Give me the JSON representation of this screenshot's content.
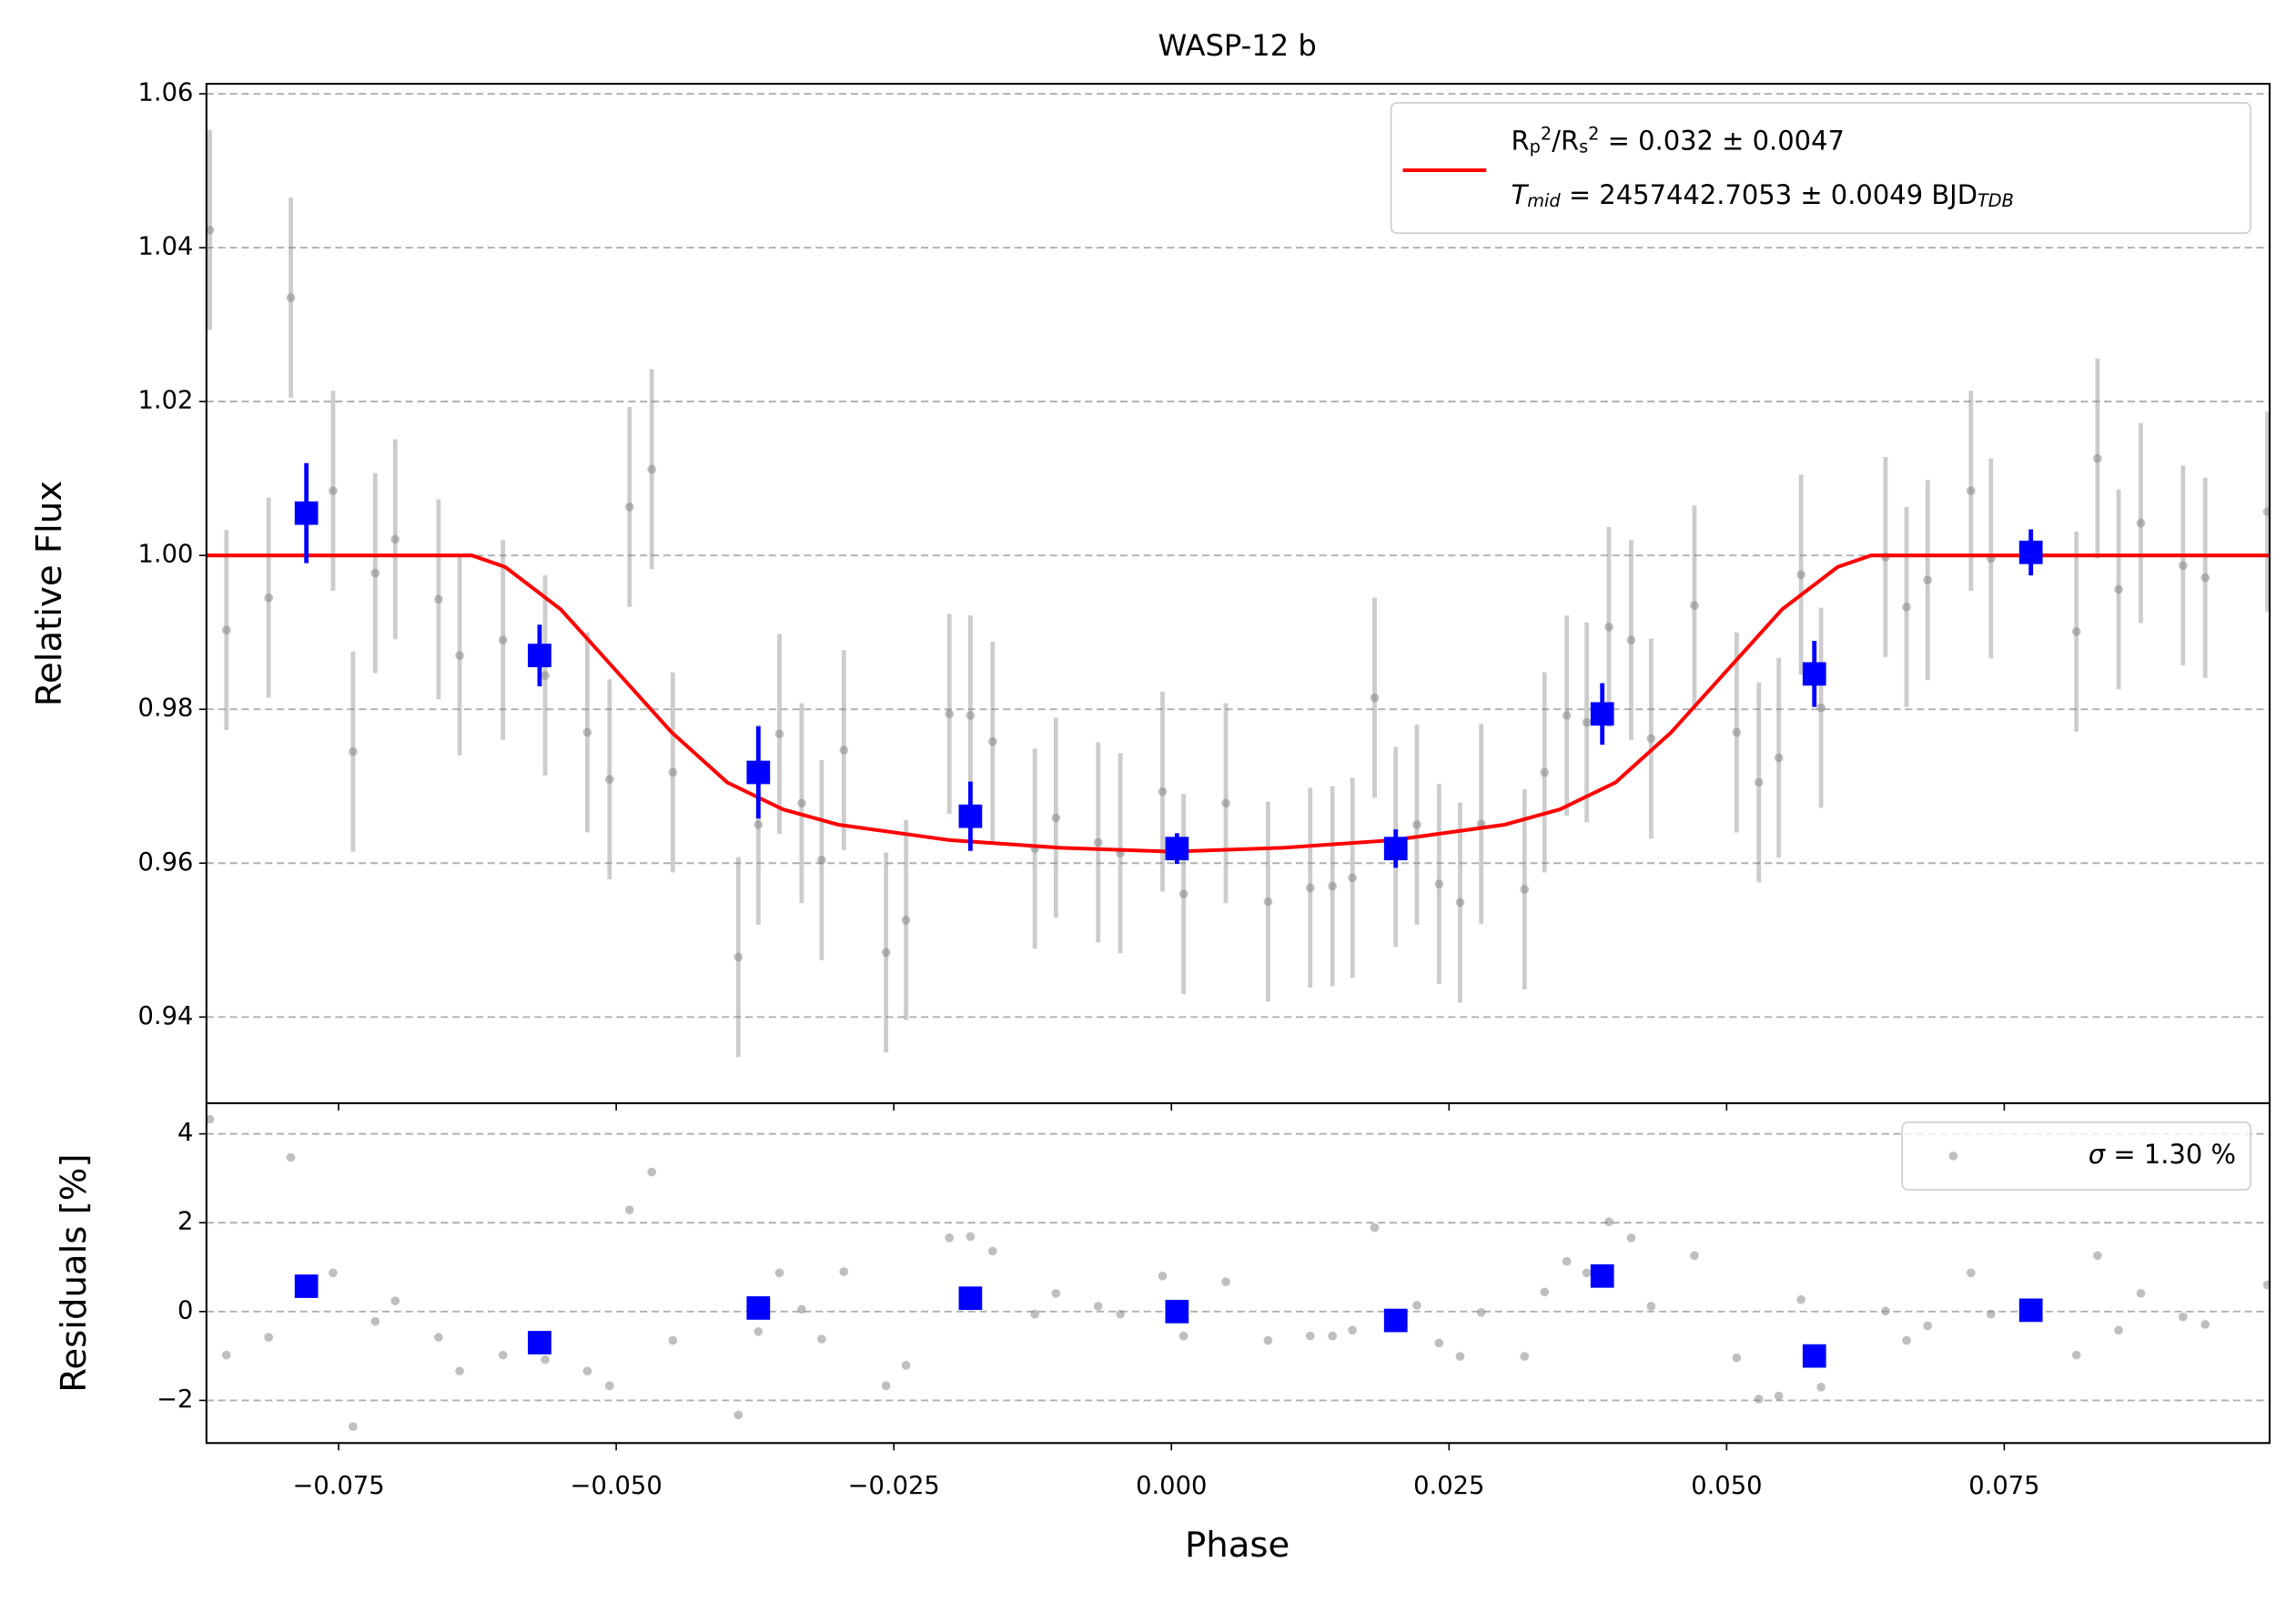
{
  "chart_data": [
    {
      "type": "lightcurve",
      "title": "WASP-12 b",
      "ylabel": "Relative Flux",
      "xlim": [
        -0.0869,
        0.0989
      ],
      "ylim": [
        0.9288,
        1.0613
      ],
      "yticks": [
        0.94,
        0.96,
        0.98,
        {
          "value": 1.0,
          "label": "1.00"
        },
        1.02,
        1.04,
        1.06
      ],
      "grid": true,
      "legend": "upper right",
      "points": {
        "color": "#808080",
        "x": [
          -0.0866,
          -0.0851,
          -0.0813,
          -0.0793,
          -0.0755,
          -0.0737,
          -0.0717,
          -0.0699,
          -0.066,
          -0.0641,
          -0.0602,
          -0.0564,
          -0.0526,
          -0.0506,
          -0.0488,
          -0.0468,
          -0.0449,
          -0.039,
          -0.0372,
          -0.0353,
          -0.0333,
          -0.0315,
          -0.0295,
          -0.0257,
          -0.0239,
          -0.02,
          -0.0181,
          -0.0161,
          -0.0123,
          -0.0104,
          -0.0066,
          -0.0046,
          -0.0008,
          0.0011,
          0.0049,
          0.0087,
          0.0125,
          0.0145,
          0.0163,
          0.0183,
          0.0202,
          0.0221,
          0.0241,
          0.026,
          0.0279,
          0.0318,
          0.0336,
          0.0356,
          0.0374,
          0.0394,
          0.0414,
          0.0432,
          0.0471,
          0.0509,
          0.0529,
          0.0547,
          0.0567,
          0.0585,
          0.0643,
          0.0662,
          0.0681,
          0.072,
          0.0738,
          0.0815,
          0.0834,
          0.0853,
          0.0873,
          0.0911,
          0.0931,
          0.0987
        ],
        "values": [
          1.0423,
          0.9903,
          0.9945,
          1.0335,
          1.0084,
          0.9745,
          0.9977,
          1.0021,
          0.9943,
          0.987,
          0.989,
          0.9844,
          0.977,
          0.9709,
          1.0063,
          1.0112,
          0.9718,
          0.9478,
          0.965,
          0.9768,
          0.9678,
          0.9604,
          0.9747,
          0.9484,
          0.9526,
          0.9794,
          0.9792,
          0.9758,
          0.9619,
          0.9659,
          0.9627,
          0.9613,
          0.9693,
          0.956,
          0.9678,
          0.955,
          0.9568,
          0.957,
          0.9581,
          0.9815,
          0.9621,
          0.965,
          0.9573,
          0.9549,
          0.9651,
          0.9566,
          0.9718,
          0.9792,
          0.9783,
          0.9907,
          0.989,
          0.9762,
          0.9935,
          0.977,
          0.9705,
          0.9737,
          0.9975,
          0.9802,
          0.9998,
          0.9933,
          0.9968,
          1.0084,
          0.9996,
          0.9901,
          1.0126,
          0.9956,
          1.0042,
          0.9987,
          0.9971,
          1.0057
        ],
        "errors": [
          0.013,
          0.013,
          0.013,
          0.013,
          0.013,
          0.013,
          0.013,
          0.013,
          0.013,
          0.013,
          0.013,
          0.013,
          0.013,
          0.013,
          0.013,
          0.013,
          0.013,
          0.013,
          0.013,
          0.013,
          0.013,
          0.013,
          0.013,
          0.013,
          0.013,
          0.013,
          0.013,
          0.013,
          0.013,
          0.013,
          0.013,
          0.013,
          0.013,
          0.013,
          0.013,
          0.013,
          0.013,
          0.013,
          0.013,
          0.013,
          0.013,
          0.013,
          0.013,
          0.013,
          0.013,
          0.013,
          0.013,
          0.013,
          0.013,
          0.013,
          0.013,
          0.013,
          0.013,
          0.013,
          0.013,
          0.013,
          0.013,
          0.013,
          0.013,
          0.013,
          0.013,
          0.013,
          0.013,
          0.013,
          0.013,
          0.013,
          0.013,
          0.013,
          0.013,
          0.013
        ]
      },
      "binned": {
        "color": "#0000ff",
        "x": [
          -0.0779,
          -0.0569,
          -0.0372,
          -0.0181,
          0.0005,
          0.0202,
          0.0388,
          0.0579,
          0.0774
        ],
        "values": [
          1.0055,
          0.987,
          0.9718,
          0.9661,
          0.9619,
          0.9619,
          0.9794,
          0.9846,
          1.0004
        ],
        "errors": [
          0.0065,
          0.004,
          0.006,
          0.0045,
          0.002,
          0.0025,
          0.004,
          0.0043,
          0.003
        ]
      },
      "model": {
        "color": "#ff0000",
        "x": [
          -0.0869,
          -0.063,
          -0.06,
          -0.055,
          -0.05,
          -0.045,
          -0.04,
          -0.035,
          -0.03,
          -0.02,
          -0.01,
          0,
          0.01,
          0.02,
          0.03,
          0.035,
          0.04,
          0.045,
          0.05,
          0.055,
          0.06,
          0.063,
          0.0989
        ],
        "values": [
          1.0,
          1.0,
          0.9985,
          0.993,
          0.985,
          0.977,
          0.9705,
          0.967,
          0.965,
          0.963,
          0.962,
          0.9615,
          0.962,
          0.963,
          0.965,
          0.967,
          0.9705,
          0.977,
          0.985,
          0.993,
          0.9985,
          1.0,
          1.0
        ],
        "legend_lines": [
          [
            {
              "text": "R"
            },
            {
              "text": "p",
              "sub": true
            },
            {
              "text": "2",
              "sup": true
            },
            {
              "text": "/R"
            },
            {
              "text": "s",
              "sub": true
            },
            {
              "text": "2",
              "sup": true
            },
            {
              "text": " = 0.032 ± 0.0047"
            }
          ],
          [
            {
              "text": "T",
              "italic": true
            },
            {
              "text": "mid",
              "sub": true,
              "italic": true
            },
            {
              "text": " = 2457442.7053 ± 0.0049 BJD"
            },
            {
              "text": "TDB",
              "sub": true,
              "italic": true
            }
          ]
        ]
      }
    },
    {
      "type": "residuals",
      "ylabel": "Residuals [%]",
      "xlabel": "Phase",
      "xlim": [
        -0.0869,
        0.0989
      ],
      "ylim": [
        -2.96,
        4.69
      ],
      "xticks": [
        {
          "value": -0.075,
          "label": "−0.075"
        },
        {
          "value": -0.05,
          "label": "−0.050"
        },
        {
          "value": -0.025,
          "label": "−0.025"
        },
        {
          "value": 0,
          "label": "0.000"
        },
        0.025,
        {
          "value": 0.05,
          "label": "0.050"
        },
        0.075
      ],
      "yticks": [
        {
          "value": -2,
          "label": "−2"
        },
        0,
        2,
        4
      ],
      "grid": true,
      "legend": "upper right",
      "points": {
        "color": "#808080",
        "x": [
          -0.0866,
          -0.0851,
          -0.0813,
          -0.0793,
          -0.0755,
          -0.0737,
          -0.0717,
          -0.0699,
          -0.066,
          -0.0641,
          -0.0602,
          -0.0564,
          -0.0526,
          -0.0506,
          -0.0488,
          -0.0468,
          -0.0449,
          -0.039,
          -0.0372,
          -0.0353,
          -0.0333,
          -0.0315,
          -0.0295,
          -0.0257,
          -0.0239,
          -0.02,
          -0.0181,
          -0.0161,
          -0.0123,
          -0.0104,
          -0.0066,
          -0.0046,
          -0.0008,
          0.0011,
          0.0049,
          0.0087,
          0.0125,
          0.0145,
          0.0163,
          0.0183,
          0.0202,
          0.0221,
          0.0241,
          0.026,
          0.0279,
          0.0318,
          0.0336,
          0.0356,
          0.0374,
          0.0394,
          0.0414,
          0.0432,
          0.0471,
          0.0509,
          0.0529,
          0.0547,
          0.0567,
          0.0585,
          0.0643,
          0.0662,
          0.0681,
          0.072,
          0.0738,
          0.0815,
          0.0834,
          0.0853,
          0.0873,
          0.0911,
          0.0931,
          0.0987
        ],
        "values": [
          4.33,
          -0.98,
          -0.58,
          3.47,
          0.87,
          -2.59,
          -0.22,
          0.24,
          -0.58,
          -1.34,
          -0.98,
          -1.08,
          -1.34,
          -1.67,
          2.29,
          3.14,
          -0.65,
          -2.33,
          -0.45,
          0.87,
          0.05,
          -0.62,
          0.9,
          -1.67,
          -1.21,
          1.66,
          1.69,
          1.36,
          -0.06,
          0.41,
          0.12,
          -0.06,
          0.8,
          -0.55,
          0.67,
          -0.65,
          -0.55,
          -0.55,
          -0.42,
          1.89,
          -0.15,
          0.14,
          -0.71,
          -1.01,
          -0.02,
          -1.01,
          0.44,
          1.13,
          0.87,
          2.02,
          1.66,
          0.12,
          1.26,
          -1.04,
          -1.97,
          -1.9,
          0.27,
          -1.7,
          0.01,
          -0.65,
          -0.32,
          0.87,
          -0.06,
          -0.98,
          1.26,
          -0.42,
          0.41,
          -0.12,
          -0.29,
          0.6
        ],
        "legend_lines": [
          [
            {
              "text": "σ",
              "italic": true
            },
            {
              "text": " = 1.30 %"
            }
          ]
        ]
      },
      "binned": {
        "color": "#0000ff",
        "x": [
          -0.0779,
          -0.0569,
          -0.0372,
          -0.0181,
          0.0005,
          0.0202,
          0.0388,
          0.0579,
          0.0774
        ],
        "values": [
          0.57,
          -0.7,
          0.08,
          0.3,
          0.0,
          -0.2,
          0.8,
          -1.0,
          0.03
        ]
      }
    }
  ]
}
